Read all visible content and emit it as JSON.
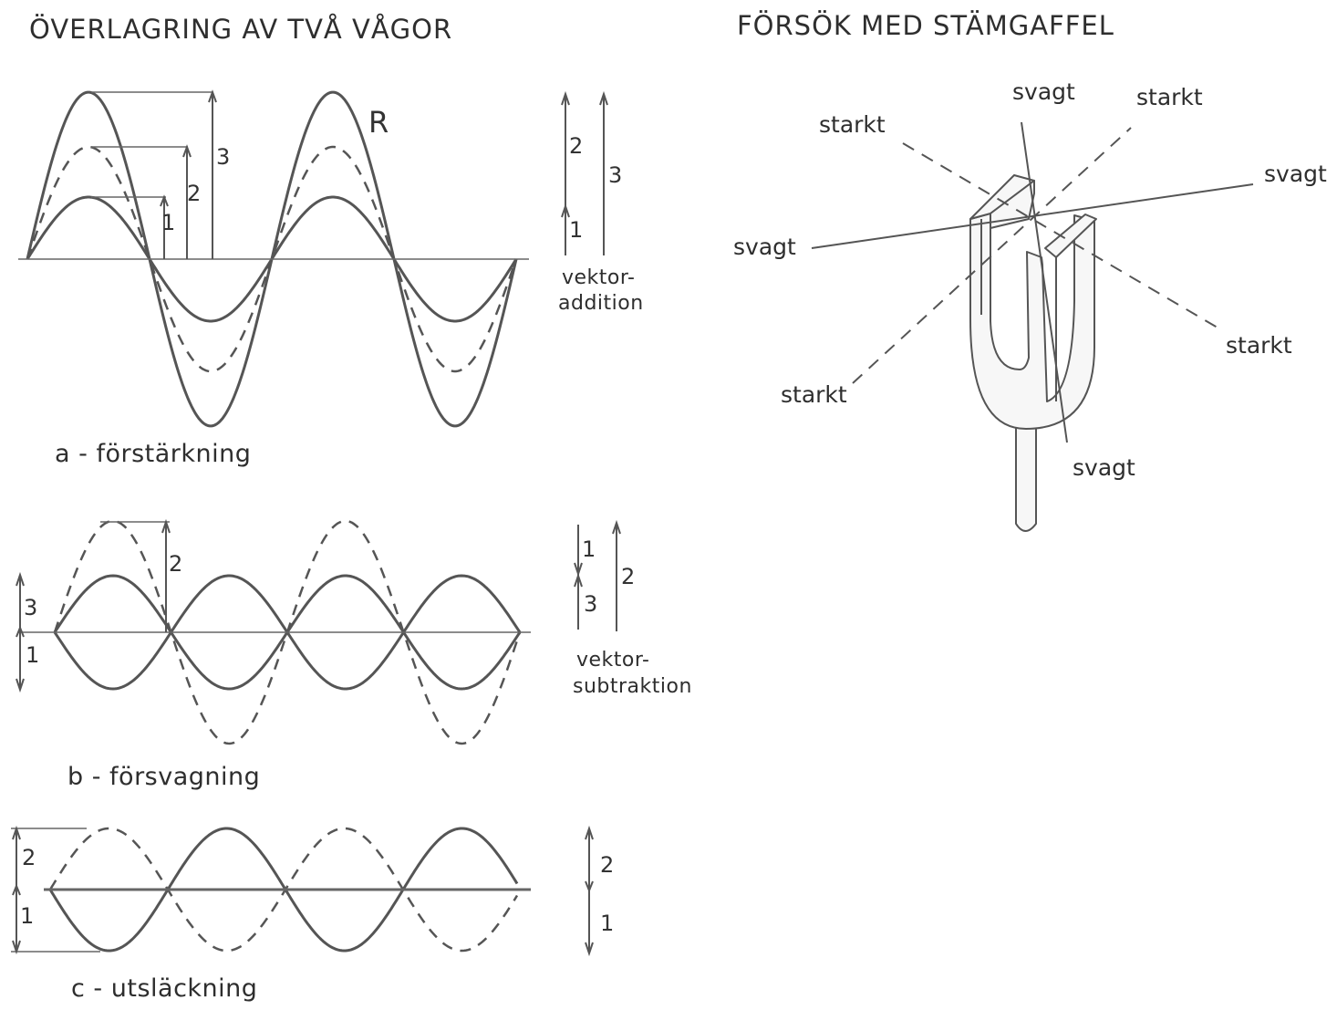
{
  "left_title": "ÖVERLAGRING AV TVÅ VÅGOR",
  "right_title": "FÖRSÖK MED STÄMGAFFEL",
  "panel_a": {
    "caption": "a  -  förstärkning",
    "resultant_label": "R",
    "amp_labels": [
      "1",
      "2",
      "3"
    ],
    "vector_labels": [
      "2",
      "1",
      "3"
    ],
    "vector_text_1": "vektor-",
    "vector_text_2": "addition"
  },
  "panel_b": {
    "caption": "b  -  försvagning",
    "amp_labels": [
      "2",
      "3",
      "1"
    ],
    "vector_labels": [
      "1",
      "3",
      "2"
    ],
    "vector_text_1": "vektor-",
    "vector_text_2": "subtraktion"
  },
  "panel_c": {
    "caption": "c  -  utsläckning",
    "amp_labels": [
      "2",
      "1"
    ],
    "vector_labels": [
      "2",
      "1"
    ]
  },
  "fork_labels": {
    "svagt_top": "svagt",
    "starkt_top_right": "starkt",
    "starkt_top_left": "starkt",
    "svagt_right": "svagt",
    "svagt_left": "svagt",
    "starkt_right": "starkt",
    "starkt_bottom_left": "starkt",
    "svagt_bottom": "svagt"
  }
}
